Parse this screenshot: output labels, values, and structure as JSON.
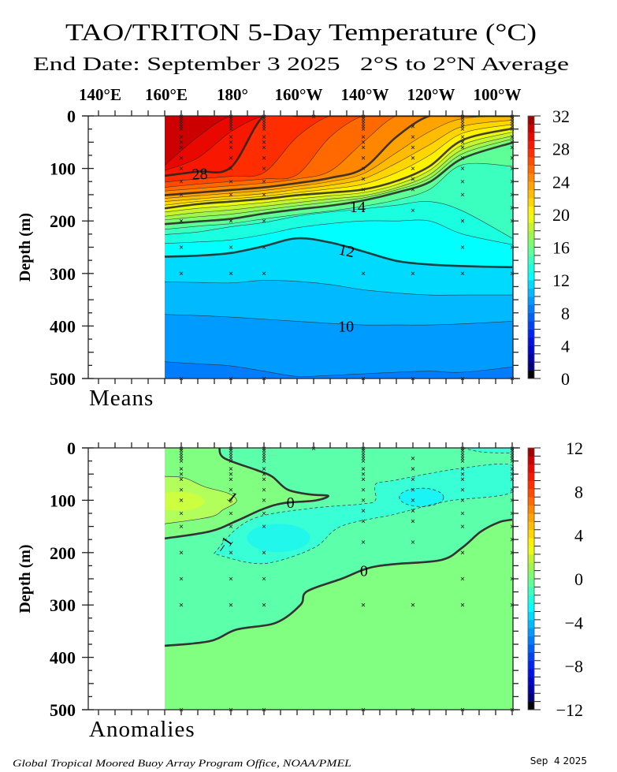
{
  "title": "TAO/TRITON 5-Day Temperature (°C)",
  "subtitle": "End Date: September 3 2025   2°S to 2°N Average",
  "footer": {
    "credit": "Global Tropical Moored Buoy Array Program Office, NOAA/PMEL",
    "date": "Sep  4 2025"
  },
  "chart_data": [
    {
      "type": "contour",
      "panel_label": "Means",
      "ylabel": "Depth (m)",
      "x_unit": "longitude (°E, 0-360)",
      "xlim": [
        136.7,
        265
      ],
      "ylim": [
        0,
        500
      ],
      "x_ticks": [
        {
          "lon": 140,
          "label": "140°E"
        },
        {
          "lon": 160,
          "label": "160°E"
        },
        {
          "lon": 180,
          "label": "180°"
        },
        {
          "lon": 200,
          "label": "160°W"
        },
        {
          "lon": 220,
          "label": "140°W"
        },
        {
          "lon": 240,
          "label": "120°W"
        },
        {
          "lon": 260,
          "label": "100°W"
        }
      ],
      "y_ticks": [
        "0",
        "100",
        "200",
        "300",
        "400",
        "500"
      ],
      "data_start_lon": 160,
      "colorbar": {
        "min": 0,
        "max": 32,
        "step": 1,
        "tick_labels": [
          "32",
          "28",
          "24",
          "20",
          "16",
          "12",
          "8",
          "4",
          "0"
        ]
      },
      "background_level": 8,
      "contour_lons": [
        160,
        170,
        180,
        190,
        200,
        210,
        220,
        230,
        240,
        250,
        265
      ],
      "isotherms": [
        {
          "level": 9,
          "depths": [
            468,
            472,
            476,
            486,
            496,
            494,
            491,
            488,
            486,
            488,
            478
          ]
        },
        {
          "level": 10,
          "depths": [
            378,
            380,
            383,
            387,
            391,
            395,
            398,
            398,
            398,
            396,
            391
          ]
        },
        {
          "level": 11,
          "depths": [
            316,
            317,
            318,
            313,
            315,
            321,
            331,
            337,
            341,
            341,
            341
          ]
        },
        {
          "level": 12,
          "depths": [
            268,
            266,
            261,
            248,
            233,
            241,
            258,
            276,
            283,
            286,
            288
          ]
        },
        {
          "level": 13,
          "depths": [
            243,
            240,
            236,
            226,
            213,
            205,
            200,
            200,
            200,
            225,
            245
          ]
        },
        {
          "level": 14,
          "depths": [
            226,
            221,
            211,
            203,
            191,
            183,
            177,
            170,
            163,
            181,
            233
          ]
        },
        {
          "level": 15,
          "depths": [
            216,
            210,
            205,
            196,
            188,
            181,
            172,
            160,
            140,
            93,
            96
          ]
        },
        {
          "level": 16,
          "depths": [
            206,
            201,
            196,
            186,
            178,
            171,
            161,
            146,
            126,
            81,
            51
          ]
        },
        {
          "level": 17,
          "depths": [
            198,
            192,
            187,
            179,
            171,
            164,
            156,
            141,
            119,
            72,
            44
          ]
        },
        {
          "level": 18,
          "depths": [
            191,
            184,
            179,
            172,
            165,
            158,
            152,
            137,
            112,
            64,
            38
          ]
        },
        {
          "level": 19,
          "depths": [
            183,
            176,
            171,
            165,
            158,
            152,
            146,
            131,
            104,
            55,
            31
          ]
        },
        {
          "level": 20,
          "depths": [
            176,
            168,
            163,
            158,
            151,
            146,
            140,
            124,
            96,
            46,
            24
          ]
        },
        {
          "level": 21,
          "depths": [
            170,
            163,
            158,
            153,
            146,
            139,
            130,
            108,
            75,
            33,
            16
          ]
        },
        {
          "level": 22,
          "depths": [
            163,
            158,
            153,
            148,
            140,
            132,
            120,
            90,
            55,
            20,
            8
          ]
        },
        {
          "level": 23,
          "depths": [
            157,
            152,
            147,
            142,
            134,
            125,
            110,
            70,
            30,
            5,
            0
          ]
        },
        {
          "level": 24,
          "depths": [
            151,
            146,
            141,
            136,
            128,
            118,
            100,
            40,
            0,
            0,
            0
          ]
        },
        {
          "level": 25,
          "depths": [
            143,
            138,
            133,
            128,
            120,
            105,
            50,
            0,
            0,
            0,
            0
          ]
        },
        {
          "level": 26,
          "depths": [
            136,
            130,
            125,
            120,
            112,
            40,
            0,
            0,
            0,
            0,
            0
          ]
        },
        {
          "level": 27,
          "depths": [
            126,
            120,
            115,
            108,
            40,
            0,
            0,
            0,
            0,
            0,
            0
          ]
        },
        {
          "level": 28,
          "depths": [
            114,
            106,
            98,
            0,
            0,
            0,
            0,
            0,
            0,
            0,
            0
          ]
        },
        {
          "level": 29,
          "depths": [
            104,
            80,
            30,
            0,
            0,
            0,
            0,
            0,
            0,
            0,
            0
          ]
        },
        {
          "level": 30,
          "depths": [
            94,
            40,
            0,
            0,
            0,
            0,
            0,
            0,
            0,
            0,
            0
          ]
        }
      ],
      "thick_levels": [
        12,
        16,
        20,
        24,
        28
      ],
      "contour_labels": [
        {
          "text": "28",
          "lon": 170.6,
          "depth": 110,
          "angle": -3
        },
        {
          "text": "14",
          "lon": 218.3,
          "depth": 173,
          "angle": 0
        },
        {
          "text": "12",
          "lon": 215,
          "depth": 256,
          "angle": 12
        },
        {
          "text": "10",
          "lon": 214.8,
          "depth": 400,
          "angle": 0
        }
      ]
    },
    {
      "type": "contour",
      "panel_label": "Anomalies",
      "ylabel": "Depth (m)",
      "xlim": [
        136.7,
        265
      ],
      "ylim": [
        0,
        500
      ],
      "y_ticks": [
        "0",
        "100",
        "200",
        "300",
        "400",
        "500"
      ],
      "data_start_lon": 160,
      "colorbar": {
        "min": -12,
        "max": 12,
        "tick_labels": [
          "12",
          "8",
          "4",
          "0",
          "−4",
          "−8",
          "−12"
        ]
      },
      "region_colors": {
        "zero_to_one": "#80ff80",
        "minus_one_to_zero": "#5cffaa",
        "minus_two_to_minus_one": "#38ffd6",
        "minus_two_core": "#1af4f4",
        "one_to_two": "#b2ff5c",
        "two_core": "#ccff40"
      },
      "contours": {
        "zero_lower": [
          [
            160,
            378
          ],
          [
            173.7,
            369
          ],
          [
            181.7,
            347
          ],
          [
            193.6,
            334
          ],
          [
            201,
            300
          ],
          [
            203,
            274
          ],
          [
            213.4,
            250
          ],
          [
            221.3,
            230
          ],
          [
            229.3,
            222
          ],
          [
            243.6,
            214
          ],
          [
            250,
            190
          ],
          [
            255.5,
            160
          ],
          [
            261,
            142
          ],
          [
            265,
            137
          ]
        ],
        "zero_upper": [
          [
            176.5,
            0
          ],
          [
            178,
            19.5
          ],
          [
            187.6,
            42
          ],
          [
            192.4,
            54.5
          ],
          [
            197.1,
            79.5
          ],
          [
            204,
            89
          ],
          [
            209.4,
            91.5
          ],
          [
            205.5,
            100.5
          ],
          [
            195.9,
            105.5
          ],
          [
            189.6,
            117
          ],
          [
            181.7,
            139.5
          ],
          [
            173.7,
            159.5
          ],
          [
            160,
            173
          ]
        ],
        "minus_one": [
          [
            174.9,
            202
          ],
          [
            181.7,
            154.5
          ],
          [
            189.6,
            129.5
          ],
          [
            205.5,
            114.5
          ],
          [
            219.8,
            107
          ],
          [
            223.7,
            99.5
          ],
          [
            223.7,
            69.5
          ],
          [
            229.3,
            62
          ],
          [
            249,
            39.5
          ],
          [
            265,
            33.5
          ],
          [
            265,
            84.5
          ],
          [
            245.2,
            102
          ],
          [
            229.3,
            127
          ],
          [
            213.4,
            149.5
          ],
          [
            205.5,
            189.5
          ],
          [
            193.6,
            217
          ],
          [
            185.7,
            219.5
          ],
          [
            174.9,
            202
          ]
        ],
        "minus_one_topright": [
          [
            250,
            0
          ],
          [
            256,
            8
          ],
          [
            265,
            10
          ]
        ],
        "plus_one": [
          [
            160,
            54.5
          ],
          [
            165.8,
            57
          ],
          [
            172.2,
            74.5
          ],
          [
            179.3,
            87
          ],
          [
            181.7,
            102
          ],
          [
            177.7,
            118
          ],
          [
            173.7,
            132
          ],
          [
            160,
            145
          ]
        ],
        "minus_two_center": [
          237.6,
          94.5
        ],
        "minus_two_radius": [
          6.7,
          17.5
        ],
        "minus_core_center": [
          194.4,
          172
        ],
        "minus_core_radius": [
          9.5,
          27
        ],
        "plus_core_center": [
          164,
          102
        ],
        "plus_core_radius": [
          8,
          18
        ]
      },
      "contour_labels": [
        {
          "text": "0",
          "lon": 198,
          "depth": 104,
          "angle": 0
        },
        {
          "text": "0",
          "lon": 220.2,
          "depth": 234,
          "angle": 0
        },
        {
          "text": "1",
          "lon": 180.5,
          "depth": 94,
          "angle": 40
        },
        {
          "text": "−1",
          "lon": 178,
          "depth": 185,
          "angle": -55
        }
      ]
    }
  ],
  "moorings": [
    {
      "lon": 165,
      "depths": [
        1,
        5,
        10,
        15,
        20,
        25,
        40,
        50,
        60,
        80,
        100,
        125,
        150,
        200,
        250,
        300,
        500
      ]
    },
    {
      "lon": 180,
      "depths": [
        1,
        5,
        10,
        15,
        20,
        25,
        40,
        50,
        60,
        80,
        100,
        125,
        150,
        200,
        250,
        300,
        500
      ]
    },
    {
      "lon": 190,
      "depths": [
        1,
        5,
        10,
        15,
        20,
        25,
        40,
        50,
        60,
        80,
        100,
        125,
        150,
        200,
        250,
        300,
        500
      ]
    },
    {
      "lon": 205,
      "depths": [
        1
      ]
    },
    {
      "lon": 220,
      "depths": [
        1,
        5,
        10,
        15,
        20,
        25,
        40,
        50,
        60,
        80,
        100,
        120,
        140,
        180,
        300,
        500
      ]
    },
    {
      "lon": 235,
      "depths": [
        20,
        40,
        60,
        80,
        100,
        120,
        140,
        180,
        300,
        500
      ]
    },
    {
      "lon": 250,
      "depths": [
        1,
        5,
        10,
        15,
        20,
        25,
        40,
        50,
        60,
        80,
        100,
        125,
        150,
        200,
        250,
        300,
        500
      ]
    },
    {
      "lon": 265,
      "depths": [
        1,
        5,
        10,
        15,
        20,
        25,
        40,
        50,
        60,
        80,
        100,
        125,
        150,
        175,
        200,
        250,
        300,
        500
      ]
    }
  ]
}
